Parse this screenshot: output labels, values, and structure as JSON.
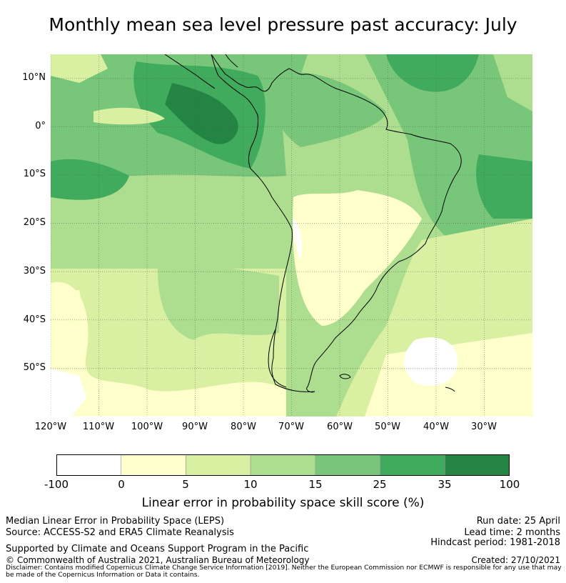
{
  "title": "Monthly mean sea level pressure past accuracy: July",
  "map": {
    "lat_labels": [
      "10°N",
      "0°",
      "10°S",
      "20°S",
      "30°S",
      "40°S",
      "50°S"
    ],
    "lon_labels": [
      "120°W",
      "110°W",
      "100°W",
      "90°W",
      "80°W",
      "70°W",
      "60°W",
      "50°W",
      "40°W",
      "30°W"
    ],
    "extent": {
      "lon_min": -120,
      "lon_max": -20,
      "lat_min": -60,
      "lat_max": 15
    }
  },
  "colorbar": {
    "ticks": [
      "-100",
      "0",
      "5",
      "10",
      "15",
      "25",
      "35",
      "100"
    ],
    "colors": [
      "#ffffff",
      "#ffffcc",
      "#d9f0a3",
      "#addd8e",
      "#78c679",
      "#41ab5d",
      "#238443"
    ],
    "label": "Linear error in probability space skill score (%)"
  },
  "footer": {
    "left_line1": "Median Linear Error in Probability Space (LEPS)",
    "left_line2": "Source: ACCESS-S2 and ERA5 Climate Reanalysis",
    "left_line3": "Supported by Climate and Oceans Support Program in the Pacific",
    "left_line4": "© Commonwealth of Australia 2021, Australian Bureau of Meteorology",
    "right_line1": "Run date: 25 April",
    "right_line2": "Lead time: 2 months",
    "right_line3": "Hindcast period: 1981-2018",
    "right_line4": "Created: 27/10/2021",
    "disclaimer": "Disclaimer: Contains modified Copernicus Climate Change Service Information [2019]. Neither the European Commission nor ECMWF is responsible for any use that may be made of the Copernicus Information or Data it contains."
  }
}
